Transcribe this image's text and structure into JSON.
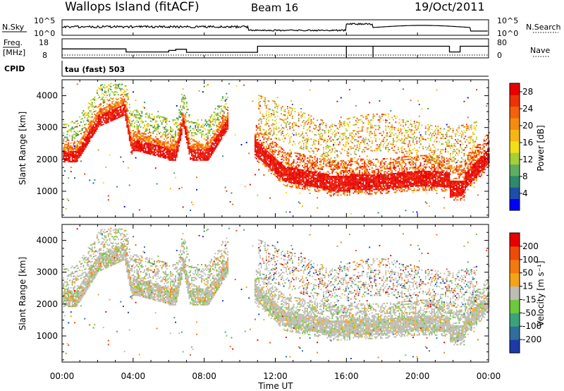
{
  "header": {
    "station": "Wallops Island (fitACF)",
    "beam": "Beam 16",
    "date": "19/Oct/2011"
  },
  "top_panels": {
    "nsky_label": "N.Sky",
    "nsearch_label": "N.Search",
    "noise_tick_high": "10^5",
    "noise_tick_low": "10^0",
    "freq_label_top": "Freq.",
    "freq_label_bottom": "[MHz]",
    "freq_ticks": [
      "18",
      "8"
    ],
    "nave_label": "Nave",
    "nave_ticks": [
      "80",
      "0"
    ],
    "cpid_label": "CPID",
    "cpid_text": "tau (fast) 503"
  },
  "chart_data": [
    {
      "type": "heatmap",
      "name": "power",
      "ylabel": "Slant Range [km]",
      "ylim": [
        180,
        4500
      ],
      "yticks": [
        1000,
        2000,
        3000,
        4000
      ],
      "colorbar": {
        "label": "Power [dB]",
        "ticks": [
          "4",
          "8",
          "12",
          "16",
          "20",
          "24",
          "28"
        ],
        "colors": [
          "#0000ff",
          "#1d4fa8",
          "#2e8a6b",
          "#5fae5f",
          "#a6cf35",
          "#f0e01a",
          "#f7b613",
          "#f48c10",
          "#f2620c",
          "#ee3208",
          "#e80000"
        ]
      }
    },
    {
      "type": "heatmap",
      "name": "velocity",
      "ylabel": "Slant Range [km]",
      "ylim": [
        180,
        4500
      ],
      "yticks": [
        1000,
        2000,
        3000,
        4000
      ],
      "colorbar": {
        "label": "Velocity [m s⁻¹]",
        "ticks": [
          "200",
          "100",
          "50",
          "15",
          "-15",
          "-50",
          "-100",
          "-200"
        ],
        "colors": [
          "#1c3aa8",
          "#2f6f9d",
          "#3aa37a",
          "#6fc83c",
          "#bdbdb5",
          "#f4a416",
          "#f27a10",
          "#ee4a0a",
          "#e80000"
        ]
      }
    }
  ],
  "time_axis": {
    "xlabel": "Time UT",
    "ticks": [
      "00:00",
      "04:00",
      "08:00",
      "12:00",
      "16:00",
      "20:00",
      "00:00"
    ],
    "xlim": [
      0,
      24
    ]
  }
}
